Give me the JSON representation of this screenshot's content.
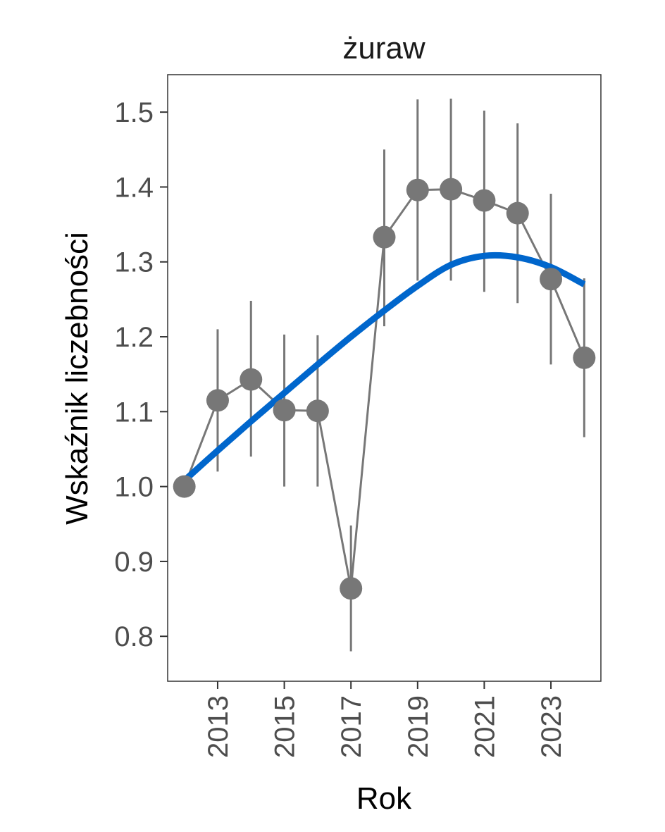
{
  "chart_data": {
    "type": "line",
    "title": "żuraw",
    "xlabel": "Rok",
    "ylabel": "Wskaźnik liczebności",
    "xlim": [
      2011.5,
      2024.5
    ],
    "ylim": [
      0.74,
      1.55
    ],
    "x_ticks": [
      2013,
      2015,
      2017,
      2019,
      2021,
      2023
    ],
    "y_ticks": [
      0.8,
      0.9,
      1.0,
      1.1,
      1.2,
      1.3,
      1.4,
      1.5
    ],
    "y_tick_labels": [
      "0.8",
      "0.9",
      "1.0",
      "1.1",
      "1.2",
      "1.3",
      "1.4",
      "1.5"
    ],
    "grid": false,
    "series": [
      {
        "points": [
          {
            "x": 2012,
            "y": 1.0
          },
          {
            "x": 2013,
            "y": 1.115,
            "low": 1.02,
            "high": 1.21
          },
          {
            "x": 2014,
            "y": 1.143,
            "low": 1.04,
            "high": 1.248
          },
          {
            "x": 2015,
            "y": 1.102,
            "low": 1.0,
            "high": 1.203
          },
          {
            "x": 2016,
            "y": 1.101,
            "low": 1.0,
            "high": 1.202
          },
          {
            "x": 2017,
            "y": 0.864,
            "low": 0.78,
            "high": 0.948
          },
          {
            "x": 2018,
            "y": 1.333,
            "low": 1.214,
            "high": 1.45
          },
          {
            "x": 2019,
            "y": 1.396,
            "low": 1.275,
            "high": 1.517
          },
          {
            "x": 2020,
            "y": 1.397,
            "low": 1.275,
            "high": 1.518
          },
          {
            "x": 2021,
            "y": 1.382,
            "low": 1.26,
            "high": 1.502
          },
          {
            "x": 2022,
            "y": 1.365,
            "low": 1.245,
            "high": 1.485
          },
          {
            "x": 2023,
            "y": 1.277,
            "low": 1.163,
            "high": 1.391
          },
          {
            "x": 2024,
            "y": 1.172,
            "low": 1.066,
            "high": 1.278
          }
        ]
      }
    ],
    "trend": {
      "x": [
        2012,
        2013,
        2014,
        2015,
        2016,
        2017,
        2018,
        2019,
        2020,
        2021,
        2022,
        2023,
        2024
      ],
      "y": [
        1.008,
        1.048,
        1.087,
        1.125,
        1.163,
        1.2,
        1.235,
        1.268,
        1.296,
        1.308,
        1.306,
        1.293,
        1.27
      ]
    },
    "colors": {
      "points": "#777777",
      "error_bars": "#777777",
      "connector": "#777777",
      "trend": "#0066cc",
      "frame": "#333333"
    }
  }
}
